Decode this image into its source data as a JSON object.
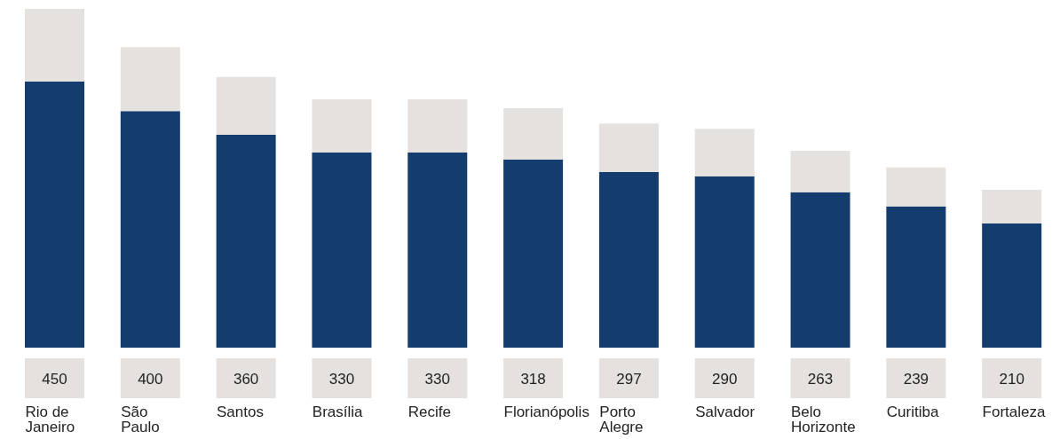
{
  "chart_data": {
    "type": "bar",
    "stacked": true,
    "categories": [
      "Rio de Janeiro",
      "São Paulo",
      "Santos",
      "Brasília",
      "Recife",
      "Florianópolis",
      "Porto Alegre",
      "Salvador",
      "Belo Horizonte",
      "Curitiba",
      "Fortaleza"
    ],
    "ylim": [
      0,
      573
    ],
    "series": [
      {
        "color": "#143d6e",
        "values": [
          450,
          400,
          360,
          330,
          330,
          318,
          297,
          290,
          263,
          239,
          210
        ],
        "value_labels": [
          "450",
          "400",
          "360",
          "330",
          "330",
          "318",
          "297",
          "290",
          "263",
          "239",
          "210"
        ]
      },
      {
        "color": "#e4e1de",
        "values": [
          123,
          108,
          98,
          90,
          90,
          87,
          82,
          80,
          70,
          66,
          57
        ]
      }
    ]
  }
}
